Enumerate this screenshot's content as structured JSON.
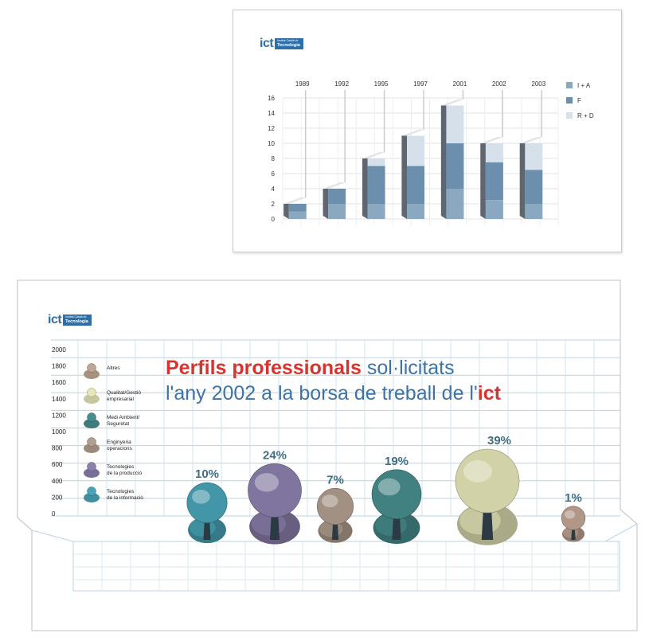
{
  "chart_data": [
    {
      "type": "bar",
      "stacked": true,
      "categories": [
        "1989",
        "1992",
        "1995",
        "1997",
        "2001",
        "2002",
        "2003"
      ],
      "series": [
        {
          "name": "I + A",
          "values": [
            1,
            2,
            2,
            2,
            4,
            2.5,
            2
          ],
          "color": "#8aa8c0"
        },
        {
          "name": "F",
          "values": [
            1,
            2,
            5,
            5,
            6,
            5,
            4.5
          ],
          "color": "#6d8fae"
        },
        {
          "name": "R + D",
          "values": [
            0,
            0,
            1,
            4,
            5,
            2.5,
            3.5
          ],
          "color": "#d6e0ea"
        }
      ],
      "yticks": [
        "16",
        "14",
        "12",
        "10",
        "8",
        "6",
        "4",
        "2",
        "0"
      ],
      "ylim": [
        0,
        16
      ],
      "grid": true,
      "legend": "right"
    },
    {
      "type": "bar",
      "categories": [
        "Tecnologies de la informació",
        "Tecnologies de la producció",
        "Enginyeria operacions",
        "Medi Ambient/ Seguretat",
        "Qualitat/Gestió empresarial",
        "Altres"
      ],
      "values": [
        10,
        24,
        7,
        19,
        39,
        1
      ],
      "value_labels": [
        "10%",
        "24%",
        "7%",
        "19%",
        "39%",
        "1%"
      ],
      "yticks": [
        "2000",
        "1800",
        "1600",
        "1400",
        "1200",
        "1000",
        "800",
        "600",
        "400",
        "200",
        "0"
      ],
      "grid": true,
      "legend": "left"
    }
  ],
  "logo": {
    "text": "ict",
    "small": "Institut Català de",
    "big": "Tecnologia"
  },
  "bottom": {
    "legend_items": [
      {
        "line1": "Altres",
        "line2": "",
        "color": "#a89080"
      },
      {
        "line1": "Qualitat/Gestió",
        "line2": "empresarial",
        "color": "#c8c8a0"
      },
      {
        "line1": "Medi Ambient/",
        "line2": "Seguretat",
        "color": "#3f7b7b"
      },
      {
        "line1": "Enginyeria",
        "line2": "operacions",
        "color": "#9a8a7c"
      },
      {
        "line1": "Tecnologies",
        "line2": "de la producció",
        "color": "#7a6f96"
      },
      {
        "line1": "Tecnologies",
        "line2": "de la informació",
        "color": "#3f8fa0"
      }
    ],
    "title_red": "Perfils professionals",
    "title_blue1": " sol·licitats",
    "title_blue2": "l'any 2002 a la borsa de treball de l'",
    "title_ict": "ict"
  }
}
